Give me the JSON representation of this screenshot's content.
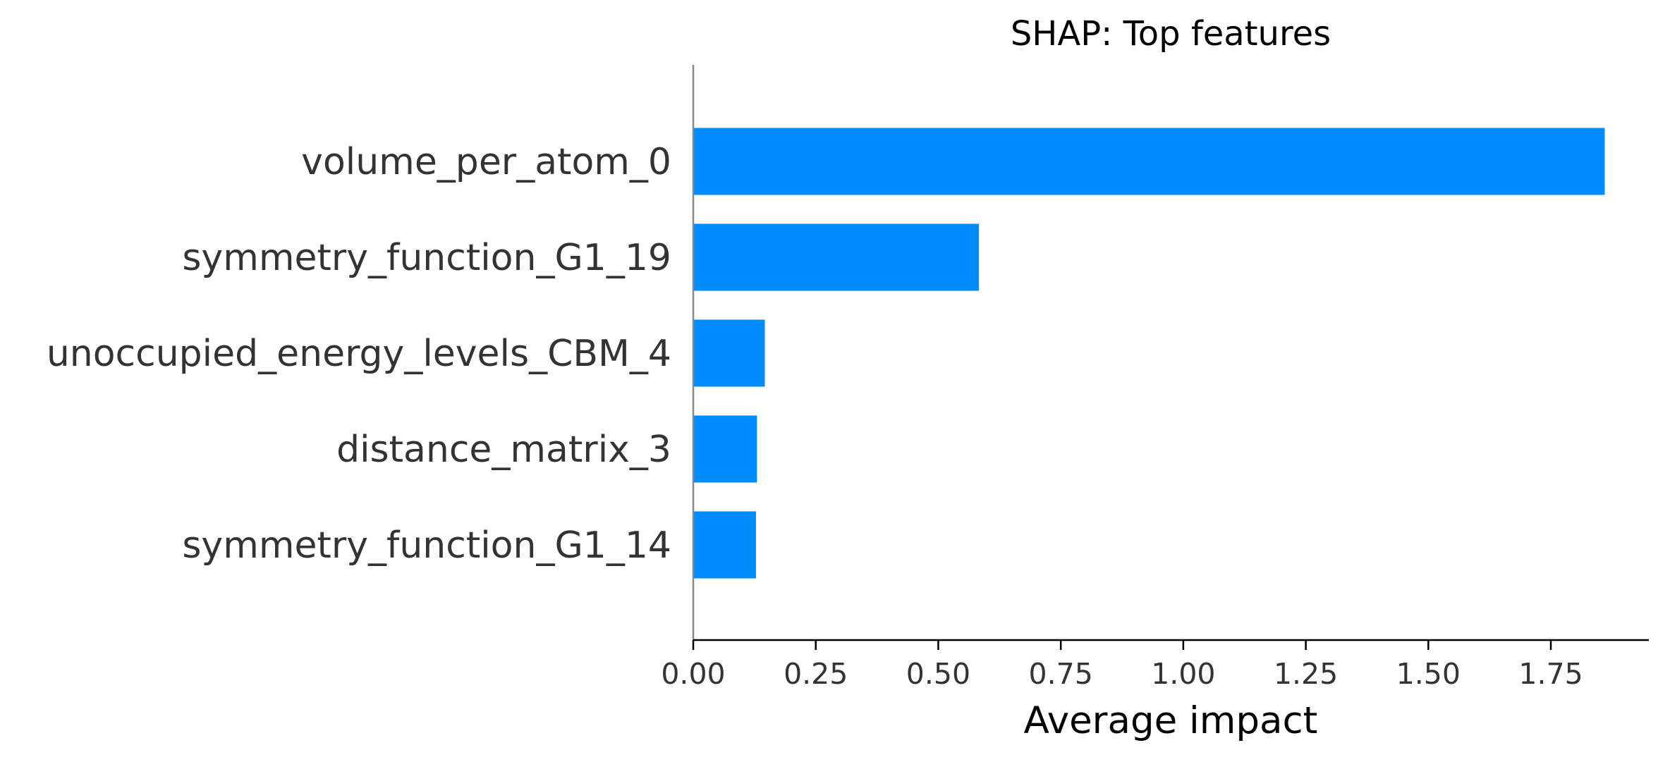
{
  "chart_data": {
    "type": "bar",
    "orientation": "horizontal",
    "title": "SHAP: Top features",
    "xlabel": "Average impact",
    "ylabel": "",
    "categories": [
      "volume_per_atom_0",
      "symmetry_function_G1_19",
      "unoccupied_energy_levels_CBM_4",
      "distance_matrix_3",
      "symmetry_function_G1_14"
    ],
    "values": [
      1.86,
      0.583,
      0.146,
      0.13,
      0.128
    ],
    "xlim": [
      0,
      1.95
    ],
    "xticks": [
      "0.00",
      "0.25",
      "0.50",
      "0.75",
      "1.00",
      "1.25",
      "1.50",
      "1.75"
    ],
    "grid": false,
    "legend": "none",
    "bar_color": "#008bfb"
  }
}
